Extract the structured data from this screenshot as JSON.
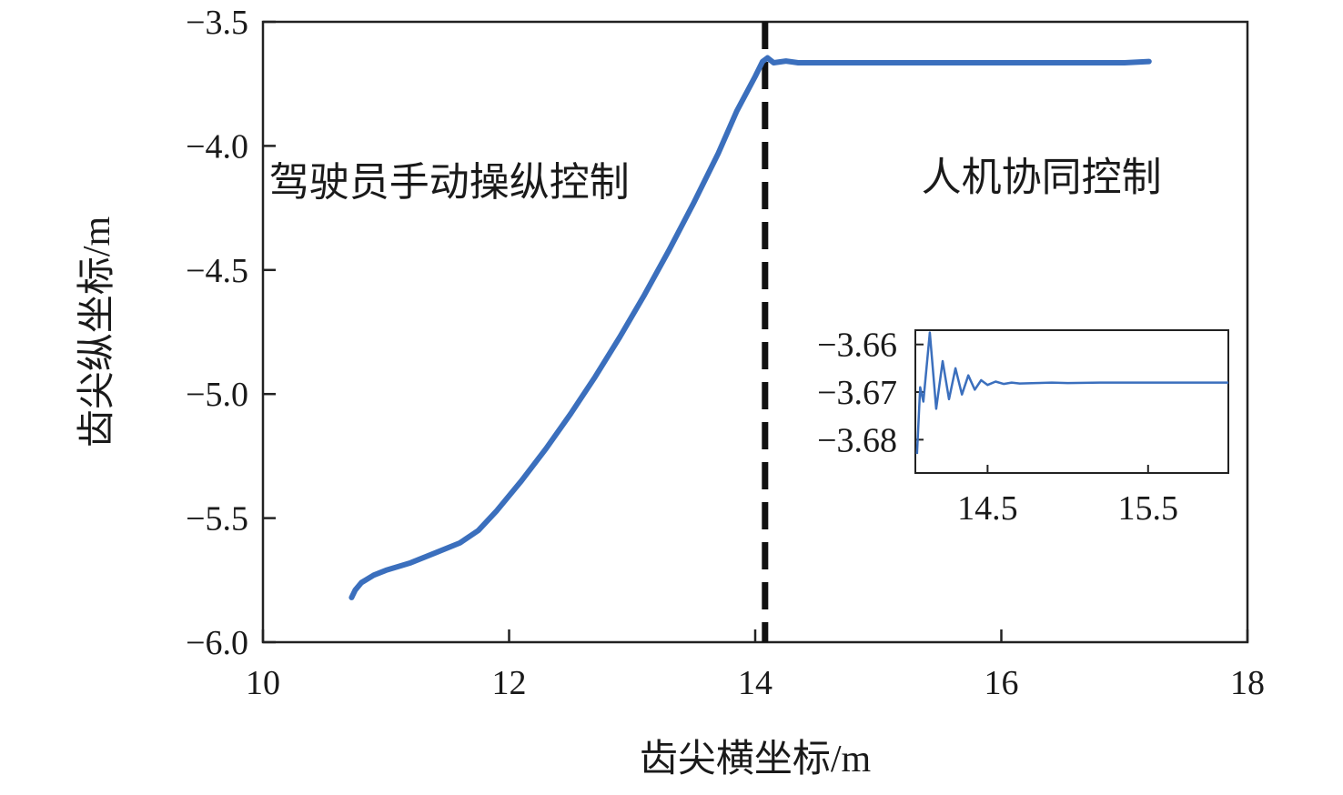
{
  "chart_data": [
    {
      "type": "line",
      "xlabel": "齿尖横坐标/m",
      "ylabel": "齿尖纵坐标/m",
      "xlim": [
        10,
        18
      ],
      "ylim": [
        -6.0,
        -3.5
      ],
      "xticks": [
        10,
        12,
        14,
        16,
        18
      ],
      "xtick_labels": [
        "10",
        "12",
        "14",
        "16",
        "18"
      ],
      "yticks": [
        -3.5,
        -4.0,
        -4.5,
        -5.0,
        -5.5,
        -6.0
      ],
      "ytick_labels": [
        "−3.5",
        "−4.0",
        "−4.5",
        "−5.0",
        "−5.5",
        "−6.0"
      ],
      "grid": false,
      "line_color": "#3b6fbd",
      "switch_line": {
        "x": 14.08,
        "style": "dashed",
        "color": "#111111"
      },
      "annotations": [
        {
          "text": "驾驶员手动操纵控制",
          "x": 10.05,
          "y": -4.2
        },
        {
          "text": "人机协同控制",
          "x": 15.35,
          "y": -4.18
        }
      ],
      "series": [
        {
          "x": [
            10.72,
            10.75,
            10.8,
            10.9,
            11.0,
            11.2,
            11.4,
            11.6,
            11.75,
            11.9,
            12.1,
            12.3,
            12.5,
            12.7,
            12.9,
            13.1,
            13.3,
            13.5,
            13.7,
            13.85,
            14.0,
            14.06,
            14.1,
            14.15,
            14.25,
            14.35,
            14.5,
            15.0,
            15.5,
            16.0,
            16.5,
            17.0,
            17.2
          ],
          "y": [
            -5.82,
            -5.79,
            -5.76,
            -5.73,
            -5.71,
            -5.68,
            -5.64,
            -5.6,
            -5.55,
            -5.47,
            -5.35,
            -5.22,
            -5.08,
            -4.93,
            -4.77,
            -4.6,
            -4.42,
            -4.23,
            -4.03,
            -3.86,
            -3.72,
            -3.66,
            -3.645,
            -3.665,
            -3.658,
            -3.665,
            -3.665,
            -3.665,
            -3.665,
            -3.665,
            -3.665,
            -3.665,
            -3.66
          ]
        }
      ]
    },
    {
      "type": "line",
      "xlim": [
        14.05,
        16.0
      ],
      "ylim": [
        -3.687,
        -3.657
      ],
      "xticks": [
        14.5,
        15.5
      ],
      "xtick_labels": [
        "14.5",
        "15.5"
      ],
      "yticks": [
        -3.66,
        -3.67,
        -3.68
      ],
      "ytick_labels": [
        "−3.66",
        "−3.67",
        "−3.68"
      ],
      "grid": false,
      "line_color": "#3b6fbd",
      "series": [
        {
          "x": [
            14.06,
            14.08,
            14.1,
            14.14,
            14.18,
            14.22,
            14.26,
            14.3,
            14.34,
            14.38,
            14.42,
            14.46,
            14.5,
            14.55,
            14.6,
            14.65,
            14.7,
            14.8,
            14.9,
            15.0,
            15.2,
            15.5,
            15.8,
            16.0
          ],
          "y": [
            -3.683,
            -3.669,
            -3.672,
            -3.6575,
            -3.6735,
            -3.6635,
            -3.6715,
            -3.665,
            -3.6705,
            -3.6665,
            -3.6695,
            -3.6675,
            -3.6685,
            -3.6678,
            -3.6683,
            -3.668,
            -3.6682,
            -3.6681,
            -3.668,
            -3.6681,
            -3.668,
            -3.668,
            -3.668,
            -3.668
          ]
        }
      ]
    }
  ]
}
